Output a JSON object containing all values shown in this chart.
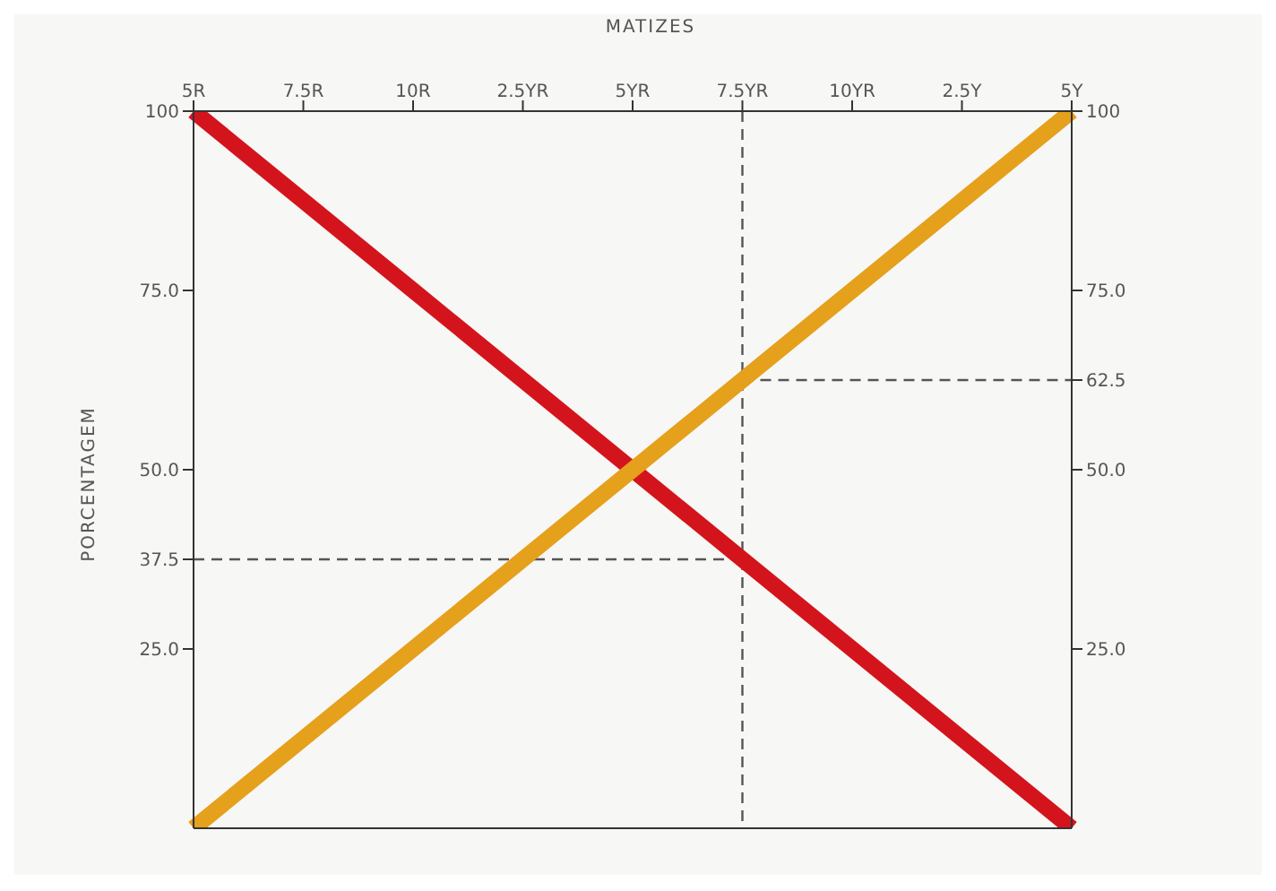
{
  "chart_data": {
    "type": "line",
    "xlabel": "MATIZES",
    "ylabel": "PORCENTAGEM",
    "categories": [
      "5R",
      "7.5R",
      "10R",
      "2.5YR",
      "5YR",
      "7.5YR",
      "10YR",
      "2.5Y",
      "5Y"
    ],
    "series": [
      {
        "color": "#d4141c",
        "values": [
          100,
          87.5,
          75,
          62.5,
          50,
          37.5,
          25,
          12.5,
          0
        ]
      },
      {
        "color": "#e5a01c",
        "values": [
          0,
          12.5,
          25,
          37.5,
          50,
          62.5,
          75,
          87.5,
          100
        ]
      }
    ],
    "ylim": [
      0,
      100
    ],
    "yticks": [
      {
        "value": 25,
        "label": "25.0"
      },
      {
        "value": 37.5,
        "label": "37.5"
      },
      {
        "value": 50,
        "label": "50.0"
      },
      {
        "value": 75,
        "label": "75.0"
      },
      100
    ],
    "y2lim": [
      0,
      100
    ],
    "y2ticks": [
      {
        "value": 25,
        "label": "25.0"
      },
      {
        "value": 50,
        "label": "50.0"
      },
      {
        "value": 62.5,
        "label": "62.5"
      },
      {
        "value": 75,
        "label": "75.0"
      },
      100
    ],
    "ref_lines": [
      {
        "axis": "x",
        "value": "7.5YR",
        "color": "#555555",
        "line_style": "dashed"
      },
      {
        "axis": "y",
        "value": 37.5,
        "color": "#555555",
        "line_style": "dashed"
      },
      {
        "axis": "y2",
        "value": 62.5,
        "color": "#555555",
        "line_style": "dashed"
      }
    ],
    "grid": false,
    "marker": "none",
    "line_style": "solid"
  }
}
